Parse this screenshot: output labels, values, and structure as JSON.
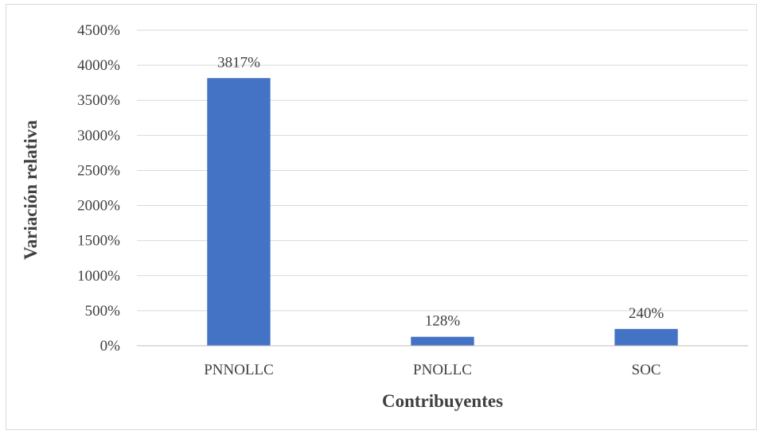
{
  "chart_data": {
    "type": "bar",
    "categories": [
      "PNNOLLC",
      "PNOLLC",
      "SOC"
    ],
    "values": [
      3817,
      128,
      240
    ],
    "data_labels": [
      "3817%",
      "128%",
      "240%"
    ],
    "title": "",
    "xlabel": "Contribuyentes",
    "ylabel": "Variación relativa",
    "ylim": [
      0,
      4500
    ],
    "yticks": [
      0,
      500,
      1000,
      1500,
      2000,
      2500,
      3000,
      3500,
      4000,
      4500
    ],
    "ytick_labels": [
      "0%",
      "500%",
      "1000%",
      "1500%",
      "2000%",
      "2500%",
      "3000%",
      "3500%",
      "4000%",
      "4500%"
    ],
    "grid": true,
    "legend": "none",
    "bar_color": "#4472c4",
    "grid_color": "#d9d9d9",
    "axis_color": "#bfbfbf"
  }
}
